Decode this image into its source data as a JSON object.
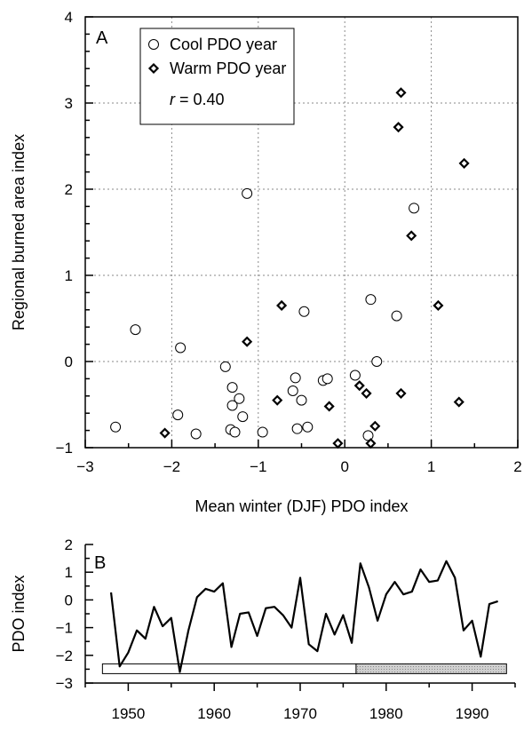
{
  "chart_data": [
    {
      "type": "scatter",
      "panel_label": "A",
      "xlabel": "Mean winter (DJF) PDO index",
      "ylabel": "Regional burned area index",
      "xlim": [
        -3,
        2
      ],
      "ylim": [
        -1,
        4
      ],
      "xticks": [
        "-3",
        "-2",
        "-1",
        "0",
        "1",
        "2"
      ],
      "yticks": [
        "-1",
        "0",
        "1",
        "2",
        "3",
        "4"
      ],
      "grid": true,
      "legend_position": "top-left",
      "annotation": "r = 0.40",
      "series": [
        {
          "name": "Cool PDO year",
          "marker": "circle",
          "points": [
            [
              -2.65,
              -0.76
            ],
            [
              -2.42,
              0.37
            ],
            [
              -1.9,
              0.16
            ],
            [
              -1.93,
              -0.62
            ],
            [
              -1.72,
              -0.84
            ],
            [
              -1.38,
              -0.06
            ],
            [
              -1.3,
              -0.3
            ],
            [
              -1.3,
              -0.51
            ],
            [
              -1.32,
              -0.79
            ],
            [
              -1.27,
              -0.82
            ],
            [
              -1.22,
              -0.43
            ],
            [
              -1.18,
              -0.64
            ],
            [
              -1.13,
              1.95
            ],
            [
              -0.95,
              -0.82
            ],
            [
              -0.6,
              -0.34
            ],
            [
              -0.57,
              -0.19
            ],
            [
              -0.55,
              -0.78
            ],
            [
              -0.5,
              -0.45
            ],
            [
              -0.47,
              0.58
            ],
            [
              -0.43,
              -0.76
            ],
            [
              -0.25,
              -0.22
            ],
            [
              -0.2,
              -0.2
            ],
            [
              0.12,
              -0.16
            ],
            [
              0.27,
              -0.86
            ],
            [
              0.3,
              0.72
            ],
            [
              0.37,
              0.0
            ],
            [
              0.6,
              0.53
            ],
            [
              0.8,
              1.78
            ]
          ]
        },
        {
          "name": "Warm PDO year",
          "marker": "diamond",
          "points": [
            [
              -2.08,
              -0.83
            ],
            [
              -1.13,
              0.23
            ],
            [
              -0.78,
              -0.45
            ],
            [
              -0.73,
              0.65
            ],
            [
              -0.18,
              -0.52
            ],
            [
              -0.08,
              -0.95
            ],
            [
              0.17,
              -0.28
            ],
            [
              0.25,
              -0.37
            ],
            [
              0.3,
              -0.95
            ],
            [
              0.35,
              -0.75
            ],
            [
              0.62,
              2.72
            ],
            [
              0.65,
              -0.37
            ],
            [
              0.65,
              3.12
            ],
            [
              0.77,
              1.46
            ],
            [
              1.08,
              0.65
            ],
            [
              1.32,
              -0.47
            ],
            [
              1.38,
              2.3
            ]
          ]
        }
      ]
    },
    {
      "type": "line",
      "panel_label": "B",
      "xlabel": "",
      "ylabel": "PDO index",
      "xlim": [
        1945,
        1995
      ],
      "ylim": [
        -3,
        2
      ],
      "xticks": [
        "1950",
        "1960",
        "1970",
        "1980",
        "1990"
      ],
      "yticks": [
        "-3",
        "-2",
        "-1",
        "0",
        "1",
        "2"
      ],
      "grid": false,
      "series": [
        {
          "x": [
            1948,
            1949,
            1950,
            1951,
            1952,
            1953,
            1954,
            1955,
            1956,
            1957,
            1958,
            1959,
            1960,
            1961,
            1962,
            1963,
            1964,
            1965,
            1966,
            1967,
            1968,
            1969,
            1970,
            1971,
            1972,
            1973,
            1974,
            1975,
            1976,
            1977,
            1978,
            1979,
            1980,
            1981,
            1982,
            1983,
            1984,
            1985,
            1986,
            1987,
            1988,
            1989,
            1990,
            1991,
            1992,
            1993
          ],
          "y": [
            0.27,
            -2.4,
            -1.9,
            -1.1,
            -1.4,
            -0.25,
            -0.95,
            -0.65,
            -2.6,
            -1.1,
            0.1,
            0.4,
            0.3,
            0.6,
            -1.7,
            -0.5,
            -0.45,
            -1.3,
            -0.3,
            -0.25,
            -0.55,
            -1.0,
            0.8,
            -1.6,
            -1.85,
            -0.5,
            -1.25,
            -0.55,
            -1.55,
            1.32,
            0.45,
            -0.75,
            0.2,
            0.65,
            0.2,
            0.3,
            1.1,
            0.65,
            0.7,
            1.4,
            0.8,
            -1.1,
            -0.75,
            -2.05,
            -0.15,
            -0.05
          ]
        }
      ],
      "regime_bar": [
        {
          "from": 1947,
          "to": 1976.5,
          "fill": "#ffffff"
        },
        {
          "from": 1976.5,
          "to": 1994,
          "fill": "#c8c8c8"
        }
      ]
    }
  ]
}
